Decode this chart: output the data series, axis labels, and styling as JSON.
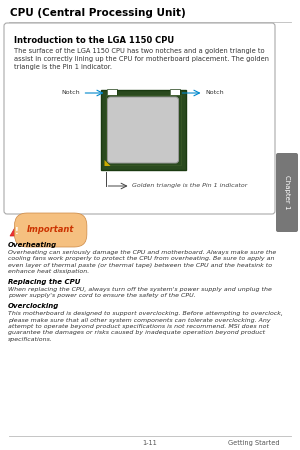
{
  "title": "CPU (Central Processing Unit)",
  "box_title": "Introduction to the LGA 1150 CPU",
  "box_body": "The surface of the LGA 1150 CPU has two notches and a golden triangle to\nassist in correctly lining up the CPU for motherboard placement. The golden\ntriangle is the Pin 1 indicator.",
  "notch_left": "Notch",
  "notch_right": "Notch",
  "golden_label": "Golden triangle is the Pin 1 indicator",
  "important_title": "Important",
  "sections": [
    {
      "heading": "Overheating",
      "text": "Overheating can seriously damage the CPU and motherboard. Always make sure the\ncooling fans work properly to protect the CPU from overheating. Be sure to apply an\neven layer of thermal paste (or thermal tape) between the CPU and the heatsink to\nenhance heat dissipation."
    },
    {
      "heading": "Replacing the CPU",
      "text": "When replacing the CPU, always turn off the system's power supply and unplug the\npower supply's power cord to ensure the safety of the CPU."
    },
    {
      "heading": "Overclocking",
      "text": "This motherboard is designed to support overclocking. Before attempting to overclock,\nplease make sure that all other system components can tolerate overclocking. Any\nattempt to operate beyond product specifications is not recommend. MSI does not\nguarantee the damages or risks caused by inadequate operation beyond product\nspecifications."
    }
  ],
  "footer_left": "1-11",
  "footer_right": "Getting Started",
  "bg_color": "#ffffff",
  "box_border_color": "#aaaaaa",
  "tab_color": "#777777",
  "tab_text": "Chapter 1"
}
